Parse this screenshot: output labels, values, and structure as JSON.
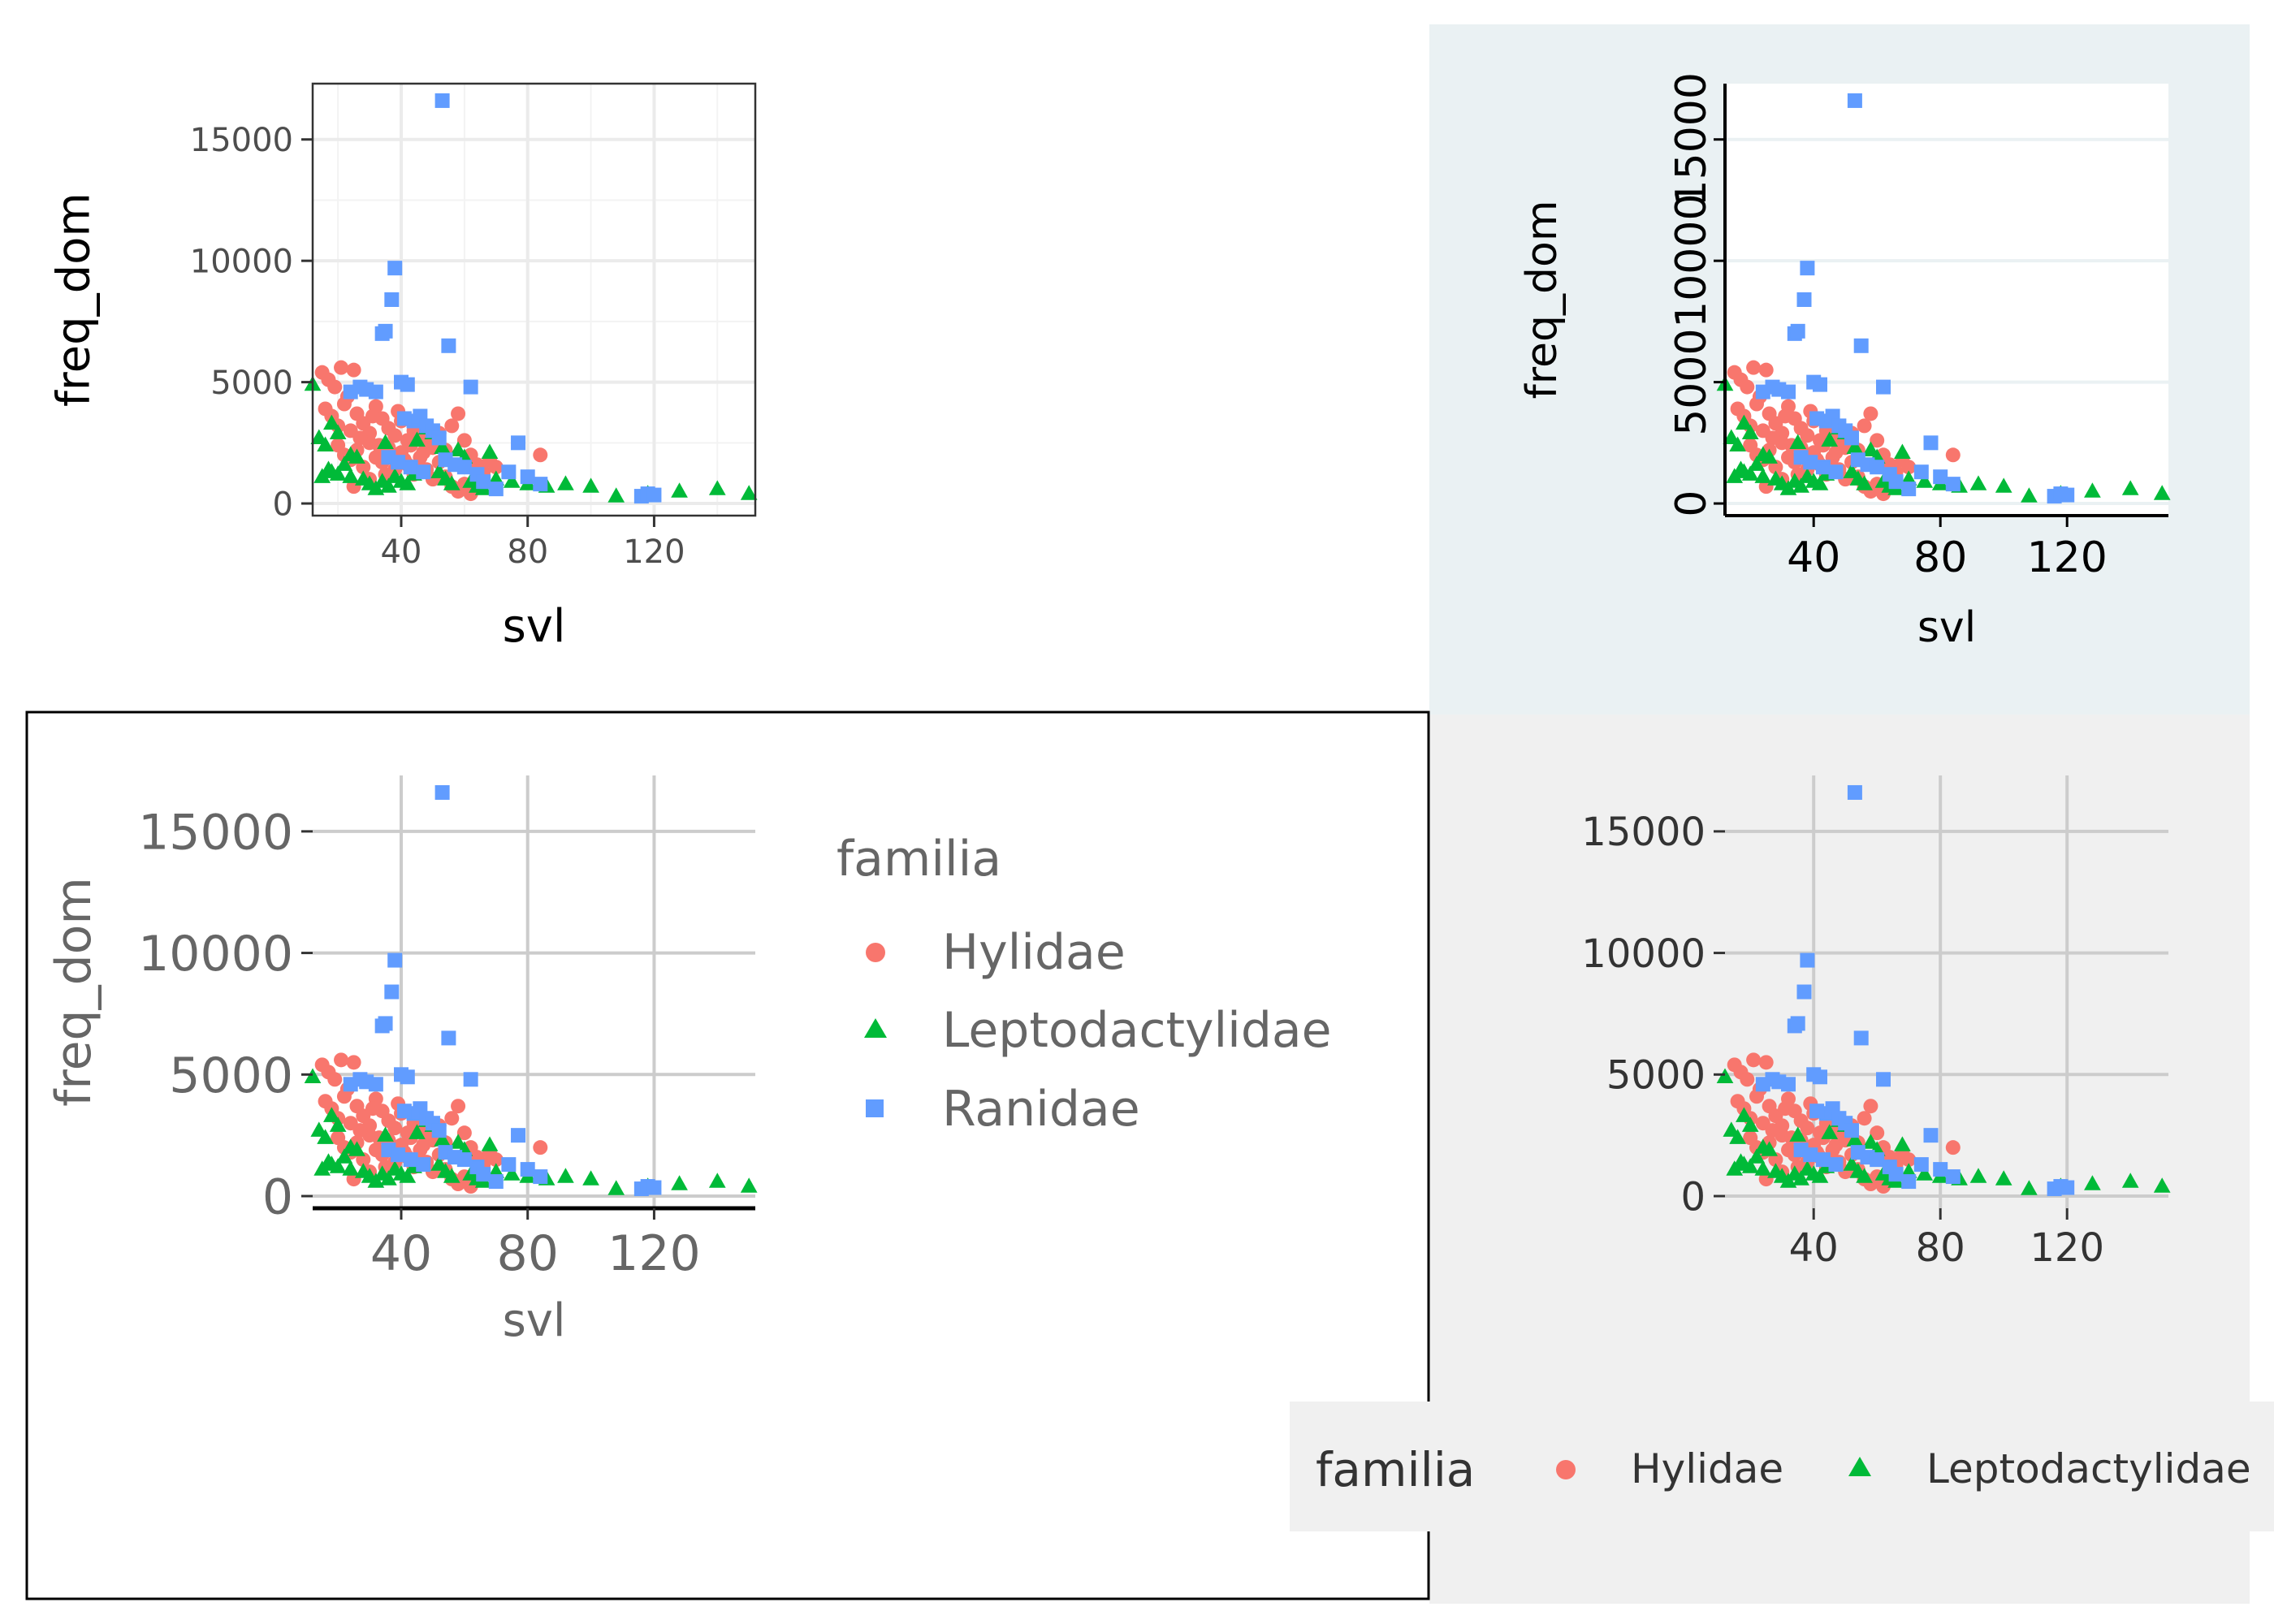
{
  "chart_data": [
    {
      "panel": "top-left",
      "theme": "bw",
      "type": "scatter",
      "xlabel": "svl",
      "ylabel": "freq_dom",
      "xlim": [
        12,
        152
      ],
      "ylim": [
        -500,
        17300
      ],
      "x_ticks": [
        40,
        80,
        120
      ],
      "y_ticks": [
        0,
        5000,
        10000,
        15000
      ],
      "x_tick_labels": [
        "40",
        "80",
        "120"
      ],
      "y_tick_labels": [
        "0",
        "5000",
        "10000",
        "15000"
      ],
      "grid": true,
      "legend": "none"
    },
    {
      "panel": "top-right",
      "theme": "rotated-y-ticks",
      "type": "scatter",
      "xlabel": "svl",
      "ylabel": "freq_dom",
      "xlim": [
        12,
        152
      ],
      "ylim": [
        -500,
        17300
      ],
      "x_ticks": [
        40,
        80,
        120
      ],
      "y_ticks": [
        0,
        5000,
        10000,
        15000
      ],
      "x_tick_labels": [
        "40",
        "80",
        "120"
      ],
      "y_tick_labels": [
        "0",
        "5000",
        "10000",
        "15000"
      ],
      "grid": "horizontal",
      "legend": "none"
    },
    {
      "panel": "bottom-left",
      "theme": "grey-text",
      "type": "scatter",
      "xlabel": "svl",
      "ylabel": "freq_dom",
      "xlim": [
        12,
        152
      ],
      "ylim": [
        -500,
        17300
      ],
      "x_ticks": [
        40,
        80,
        120
      ],
      "y_ticks": [
        0,
        5000,
        10000,
        15000
      ],
      "x_tick_labels": [
        "40",
        "80",
        "120"
      ],
      "y_tick_labels": [
        "0",
        "5000",
        "10000",
        "15000"
      ],
      "grid": true,
      "legend": "right",
      "legend_title": "familia",
      "legend_items": [
        "Hylidae",
        "Leptodactylidae",
        "Ranidae"
      ]
    },
    {
      "panel": "bottom-right",
      "theme": "light-grey",
      "type": "scatter",
      "xlabel": "",
      "ylabel": "",
      "xlim": [
        12,
        152
      ],
      "ylim": [
        -500,
        17300
      ],
      "x_ticks": [
        40,
        80,
        120
      ],
      "y_ticks": [
        0,
        5000,
        10000,
        15000
      ],
      "x_tick_labels": [
        "40",
        "80",
        "120"
      ],
      "y_tick_labels": [
        "0",
        "5000",
        "10000",
        "15000"
      ],
      "grid": true,
      "legend": "bottom",
      "legend_title": "familia",
      "legend_items": [
        "Hylidae",
        "Leptodactylidae"
      ]
    }
  ],
  "series": [
    {
      "name": "Hylidae",
      "color": "#F8766D",
      "shape": "circle",
      "points": [
        [
          15,
          5400
        ],
        [
          17,
          5100
        ],
        [
          19,
          4800
        ],
        [
          21,
          5600
        ],
        [
          23,
          4400
        ],
        [
          25,
          5500
        ],
        [
          16,
          3900
        ],
        [
          18,
          3600
        ],
        [
          20,
          3200
        ],
        [
          22,
          4100
        ],
        [
          24,
          3000
        ],
        [
          26,
          3700
        ],
        [
          28,
          3300
        ],
        [
          30,
          2900
        ],
        [
          32,
          4000
        ],
        [
          34,
          3500
        ],
        [
          36,
          3100
        ],
        [
          38,
          2800
        ],
        [
          40,
          3400
        ],
        [
          42,
          2600
        ],
        [
          44,
          3000
        ],
        [
          46,
          2700
        ],
        [
          48,
          2500
        ],
        [
          50,
          2300
        ],
        [
          52,
          2900
        ],
        [
          54,
          2200
        ],
        [
          56,
          3200
        ],
        [
          58,
          3700
        ],
        [
          60,
          2600
        ],
        [
          62,
          2000
        ],
        [
          64,
          1600
        ],
        [
          66,
          1300
        ],
        [
          68,
          1800
        ],
        [
          70,
          1500
        ],
        [
          84,
          2000
        ],
        [
          20,
          2400
        ],
        [
          22,
          2000
        ],
        [
          24,
          1800
        ],
        [
          26,
          2200
        ],
        [
          28,
          1500
        ],
        [
          30,
          2500
        ],
        [
          32,
          1900
        ],
        [
          34,
          1700
        ],
        [
          36,
          2300
        ],
        [
          38,
          1400
        ],
        [
          40,
          2100
        ],
        [
          42,
          1600
        ],
        [
          44,
          1200
        ],
        [
          46,
          1900
        ],
        [
          48,
          1400
        ],
        [
          50,
          1000
        ],
        [
          52,
          1700
        ],
        [
          54,
          1100
        ],
        [
          56,
          700
        ],
        [
          58,
          500
        ],
        [
          60,
          800
        ],
        [
          25,
          700
        ],
        [
          30,
          1000
        ],
        [
          35,
          1200
        ],
        [
          45,
          1500
        ],
        [
          62,
          400
        ],
        [
          66,
          900
        ],
        [
          27,
          2700
        ],
        [
          33,
          2400
        ],
        [
          37,
          2000
        ],
        [
          41,
          1800
        ],
        [
          43,
          2400
        ],
        [
          47,
          2100
        ],
        [
          31,
          3600
        ],
        [
          39,
          3800
        ]
      ]
    },
    {
      "name": "Leptodactylidae",
      "color": "#00BA38",
      "shape": "triangle",
      "points": [
        [
          12,
          4900
        ],
        [
          14,
          2700
        ],
        [
          16,
          2400
        ],
        [
          17,
          1400
        ],
        [
          18,
          1300
        ],
        [
          20,
          1200
        ],
        [
          22,
          1600
        ],
        [
          24,
          2000
        ],
        [
          18,
          3300
        ],
        [
          20,
          2900
        ],
        [
          26,
          1900
        ],
        [
          28,
          1000
        ],
        [
          30,
          800
        ],
        [
          32,
          600
        ],
        [
          34,
          900
        ],
        [
          36,
          700
        ],
        [
          38,
          1100
        ],
        [
          40,
          900
        ],
        [
          42,
          800
        ],
        [
          44,
          1200
        ],
        [
          46,
          3400
        ],
        [
          48,
          3100
        ],
        [
          50,
          2900
        ],
        [
          52,
          1300
        ],
        [
          54,
          1000
        ],
        [
          56,
          800
        ],
        [
          58,
          2200
        ],
        [
          60,
          1900
        ],
        [
          62,
          900
        ],
        [
          64,
          700
        ],
        [
          66,
          600
        ],
        [
          68,
          2100
        ],
        [
          70,
          1000
        ],
        [
          75,
          900
        ],
        [
          80,
          800
        ],
        [
          86,
          700
        ],
        [
          92,
          800
        ],
        [
          100,
          700
        ],
        [
          108,
          300
        ],
        [
          118,
          400
        ],
        [
          128,
          500
        ],
        [
          140,
          600
        ],
        [
          150,
          400
        ],
        [
          24,
          1100
        ],
        [
          35,
          2500
        ],
        [
          45,
          2600
        ],
        [
          53,
          2300
        ],
        [
          15,
          1100
        ]
      ]
    },
    {
      "name": "Ranidae",
      "color": "#619CFF",
      "shape": "square",
      "points": [
        [
          24,
          4600
        ],
        [
          27,
          4800
        ],
        [
          29,
          4700
        ],
        [
          32,
          4600
        ],
        [
          34,
          7000
        ],
        [
          35,
          7100
        ],
        [
          37,
          8400
        ],
        [
          38,
          9700
        ],
        [
          40,
          5000
        ],
        [
          42,
          4900
        ],
        [
          44,
          3400
        ],
        [
          46,
          3600
        ],
        [
          48,
          3200
        ],
        [
          50,
          3000
        ],
        [
          52,
          2700
        ],
        [
          54,
          1800
        ],
        [
          53,
          16600
        ],
        [
          55,
          6500
        ],
        [
          57,
          1600
        ],
        [
          60,
          1500
        ],
        [
          62,
          4800
        ],
        [
          64,
          1200
        ],
        [
          66,
          900
        ],
        [
          70,
          600
        ],
        [
          74,
          1300
        ],
        [
          77,
          2500
        ],
        [
          80,
          1100
        ],
        [
          84,
          800
        ],
        [
          116,
          300
        ],
        [
          118,
          400
        ],
        [
          120,
          350
        ],
        [
          43,
          1500
        ],
        [
          47,
          1300
        ],
        [
          36,
          1900
        ],
        [
          39,
          1700
        ],
        [
          41,
          3500
        ]
      ]
    }
  ]
}
